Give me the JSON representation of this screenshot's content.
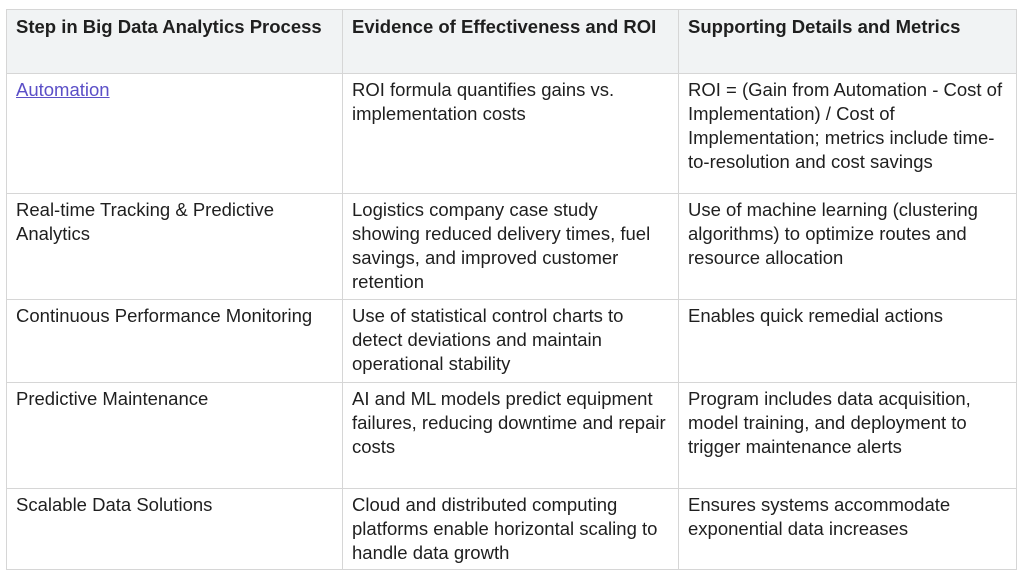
{
  "table": {
    "headers": [
      "Step in Big Data Analytics Process",
      "Evidence of Effectiveness and ROI",
      "Supporting Details and Metrics"
    ],
    "rows": [
      {
        "step": "Automation",
        "evidence": "ROI formula quantifies gains vs. implementation costs",
        "details": "ROI = (Gain from Automation - Cost of Implementation) / Cost of Implementation; metrics include time-to-resolution and cost savings"
      },
      {
        "step": "Real-time Tracking & Predictive Analytics",
        "evidence": "Logistics company case study showing reduced delivery times, fuel savings, and improved customer retention",
        "details": "Use of machine learning (clustering algorithms) to optimize routes and resource allocation"
      },
      {
        "step": "Continuous Performance Monitoring",
        "evidence": "Use of statistical control charts to detect deviations and maintain operational stability",
        "details": "Enables quick remedial actions"
      },
      {
        "step": "Predictive Maintenance",
        "evidence": "AI and ML models predict equipment failures, reducing downtime and repair costs",
        "details": "Program includes data acquisition, model training, and deployment to trigger maintenance alerts"
      },
      {
        "step": "Scalable Data Solutions",
        "evidence": "Cloud and distributed computing platforms enable horizontal scaling to handle data growth",
        "details": "Ensures systems accommodate exponential data increases"
      }
    ]
  }
}
